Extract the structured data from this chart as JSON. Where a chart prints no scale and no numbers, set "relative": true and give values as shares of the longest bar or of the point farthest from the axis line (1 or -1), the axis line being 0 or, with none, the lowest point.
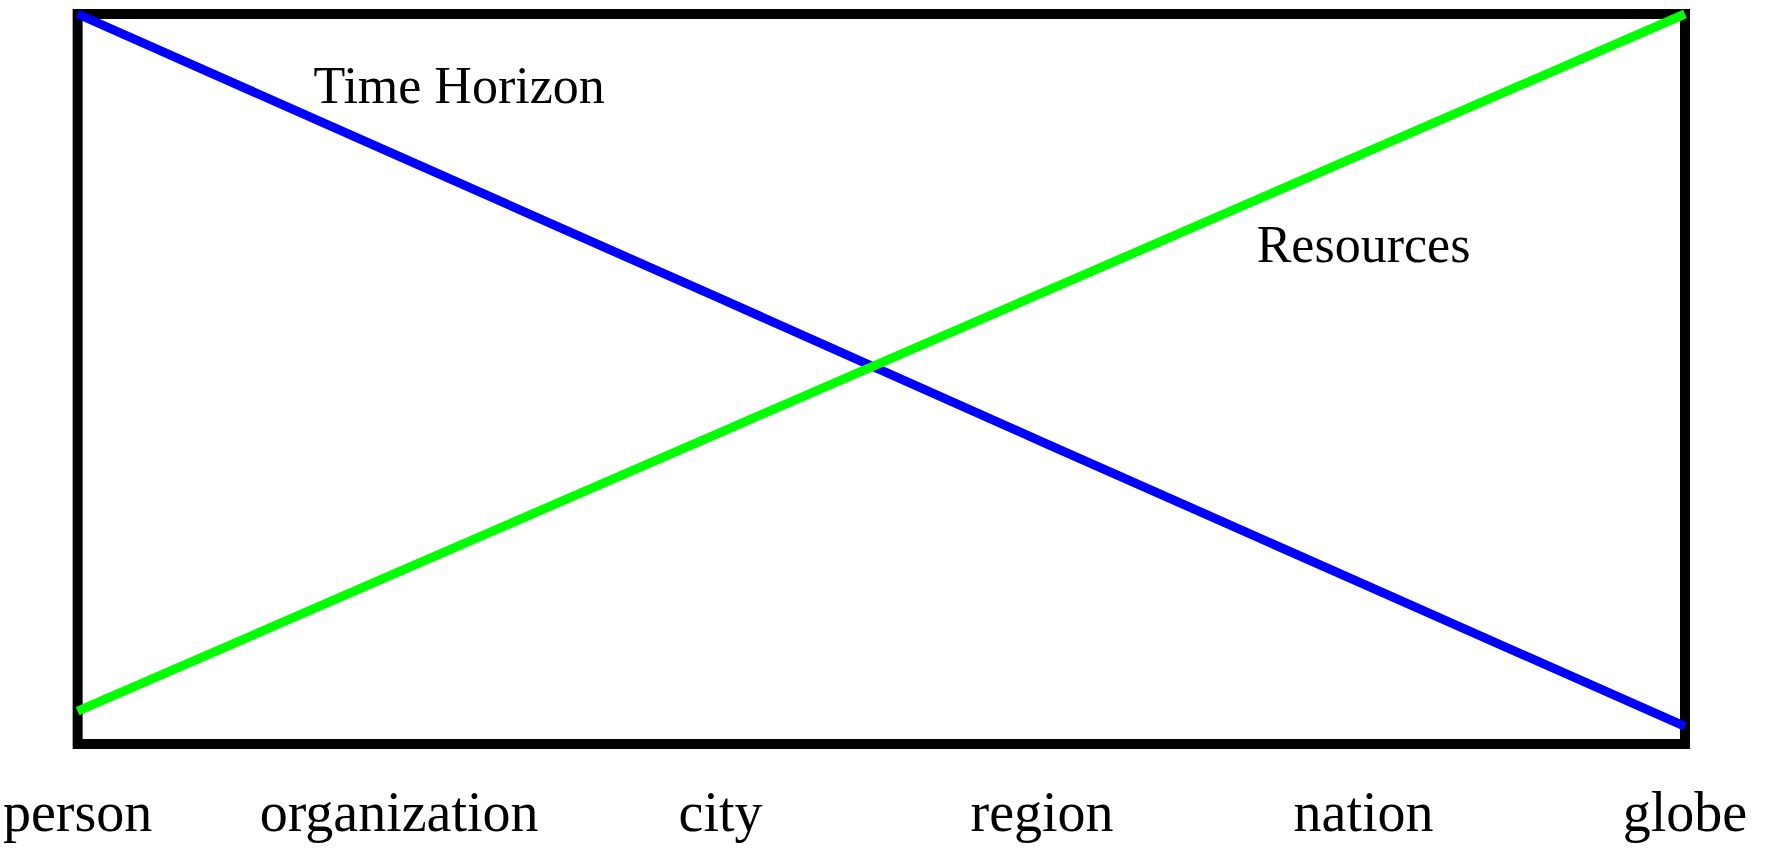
{
  "chart_data": {
    "type": "line",
    "relative": true,
    "categories": [
      "person",
      "organization",
      "city",
      "region",
      "nation",
      "globe"
    ],
    "series": [
      {
        "name": "Time Horizon",
        "color": "#0000ff",
        "values": [
          1,
          0.805,
          0.61,
          0.414,
          0.219,
          0.024
        ]
      },
      {
        "name": "Resources",
        "color": "#00ff00",
        "values": [
          0.045,
          0.236,
          0.427,
          0.618,
          0.809,
          1
        ]
      }
    ],
    "legend": false,
    "grid": false,
    "marker": "none",
    "line_style": "solid"
  }
}
